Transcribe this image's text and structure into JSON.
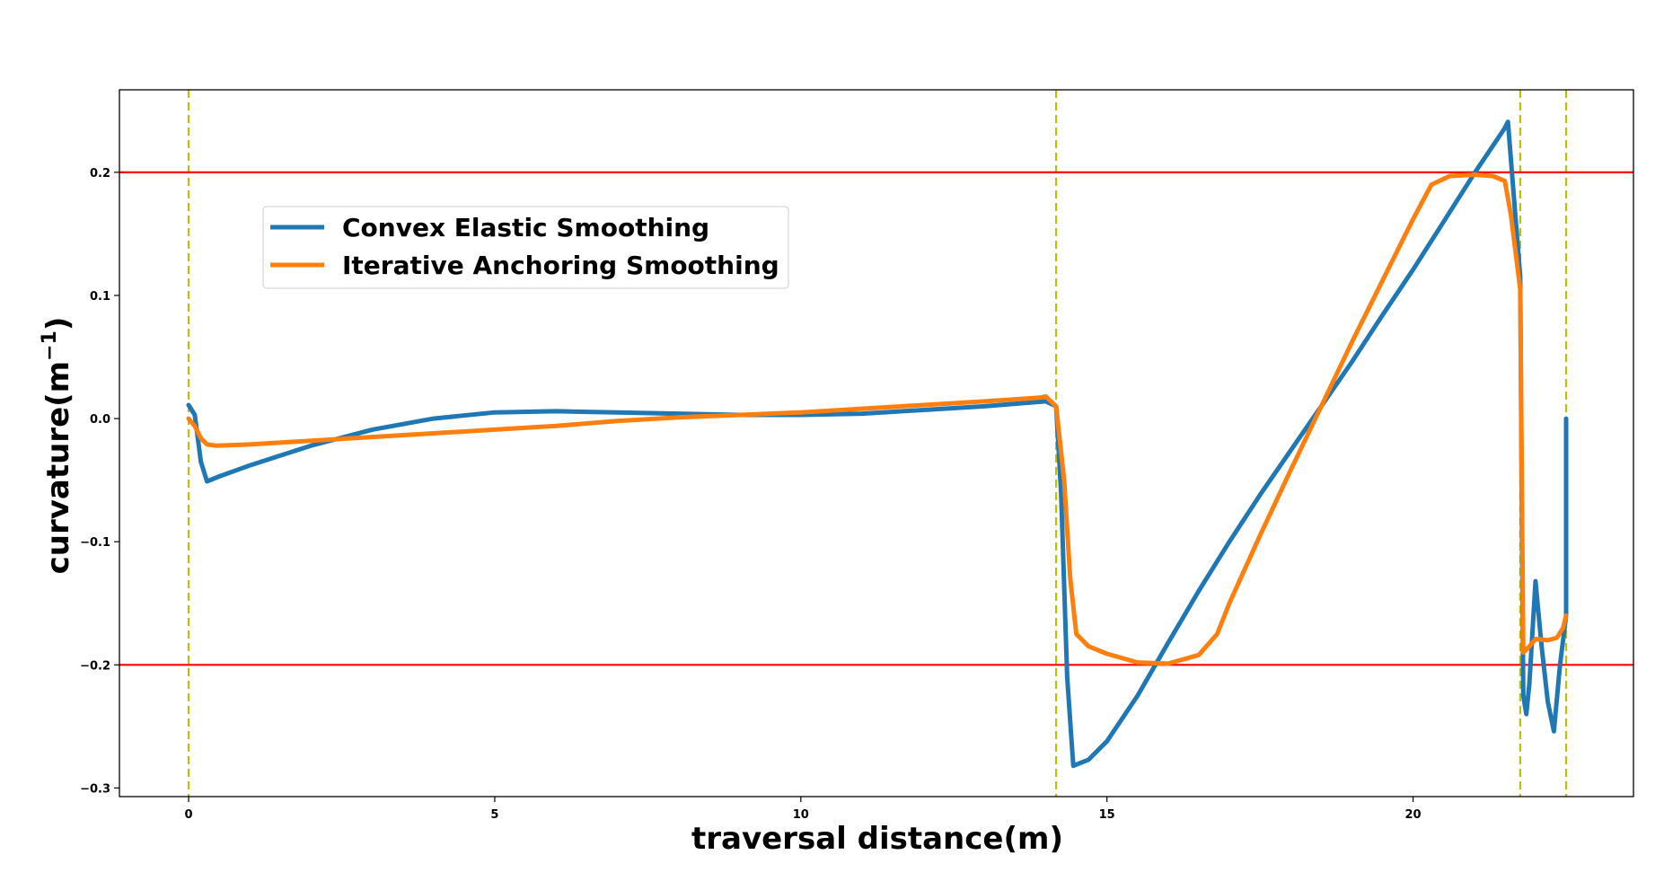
{
  "chart_data": {
    "type": "line",
    "title": "",
    "xlabel": "traversal distance(m)",
    "ylabel": "curvature(m",
    "ylabel_sup": "−1",
    "ylabel_close": ")",
    "xlim": [
      -1.13,
      23.6
    ],
    "ylim": [
      -0.307,
      0.267
    ],
    "xticks": [
      0,
      5,
      10,
      15,
      20
    ],
    "xtick_labels": [
      "0",
      "5",
      "10",
      "15",
      "20"
    ],
    "yticks": [
      -0.3,
      -0.2,
      -0.1,
      0.0,
      0.1,
      0.2
    ],
    "ytick_labels": [
      "−0.3",
      "−0.2",
      "−0.1",
      "0.0",
      "0.1",
      "0.2"
    ],
    "grid": false,
    "legend_position": "upper-left",
    "limit_lines": {
      "color": "#ff0000",
      "values": [
        0.2,
        -0.2
      ]
    },
    "segment_lines": {
      "color": "#bfbf00",
      "style": "dashed",
      "values": [
        0.0,
        14.17,
        21.75,
        22.5
      ]
    },
    "series": [
      {
        "name": "Convex Elastic Smoothing",
        "color": "#1f77b4",
        "x": [
          0.0,
          0.1,
          0.2,
          0.3,
          0.5,
          1.0,
          2.0,
          3.0,
          4.0,
          5.0,
          6.0,
          7.0,
          8.0,
          9.0,
          10.0,
          11.0,
          12.0,
          13.0,
          14.0,
          14.17,
          14.25,
          14.35,
          14.45,
          14.7,
          15.0,
          15.5,
          16.0,
          16.5,
          17.0,
          17.5,
          18.0,
          18.5,
          19.0,
          19.5,
          20.0,
          20.5,
          21.0,
          21.5,
          21.55,
          21.75,
          21.78,
          21.8,
          21.85,
          21.9,
          22.0,
          22.1,
          22.2,
          22.3,
          22.4,
          22.5,
          22.5
        ],
        "y": [
          0.011,
          0.003,
          -0.035,
          -0.051,
          -0.047,
          -0.038,
          -0.022,
          -0.009,
          0.0,
          0.005,
          0.006,
          0.005,
          0.004,
          0.003,
          0.003,
          0.004,
          0.007,
          0.01,
          0.014,
          0.01,
          -0.06,
          -0.21,
          -0.282,
          -0.277,
          -0.262,
          -0.225,
          -0.182,
          -0.14,
          -0.1,
          -0.062,
          -0.026,
          0.01,
          0.046,
          0.084,
          0.121,
          0.16,
          0.199,
          0.236,
          0.241,
          0.115,
          -0.1,
          -0.225,
          -0.24,
          -0.215,
          -0.132,
          -0.185,
          -0.23,
          -0.254,
          -0.2,
          -0.16,
          0.0
        ]
      },
      {
        "name": "Iterative Anchoring Smoothing",
        "color": "#ff7f0e",
        "x": [
          0.0,
          0.1,
          0.2,
          0.3,
          0.45,
          1.0,
          2.0,
          3.0,
          4.0,
          5.0,
          6.0,
          7.0,
          8.0,
          9.0,
          10.0,
          11.0,
          12.0,
          13.0,
          13.9,
          14.0,
          14.17,
          14.3,
          14.4,
          14.5,
          14.7,
          15.0,
          15.5,
          16.0,
          16.5,
          16.8,
          17.0,
          17.5,
          18.0,
          18.5,
          19.0,
          19.5,
          20.0,
          20.3,
          20.6,
          21.0,
          21.3,
          21.5,
          21.6,
          21.75,
          21.8,
          21.9,
          22.0,
          22.2,
          22.35,
          22.45,
          22.5
        ],
        "y": [
          0.0,
          -0.006,
          -0.016,
          -0.021,
          -0.022,
          -0.021,
          -0.018,
          -0.015,
          -0.012,
          -0.009,
          -0.006,
          -0.002,
          0.001,
          0.003,
          0.005,
          0.008,
          0.011,
          0.014,
          0.017,
          0.018,
          0.01,
          -0.05,
          -0.13,
          -0.175,
          -0.185,
          -0.191,
          -0.198,
          -0.199,
          -0.192,
          -0.175,
          -0.15,
          -0.095,
          -0.042,
          0.01,
          0.062,
          0.112,
          0.162,
          0.19,
          0.197,
          0.198,
          0.197,
          0.193,
          0.165,
          0.105,
          -0.19,
          -0.185,
          -0.179,
          -0.18,
          -0.178,
          -0.17,
          -0.16
        ]
      }
    ]
  }
}
